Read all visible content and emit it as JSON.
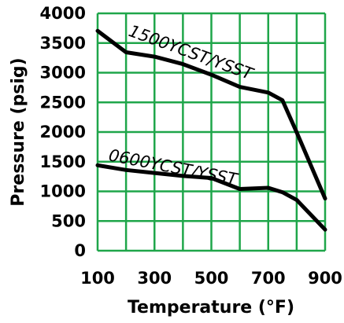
{
  "chart_data": {
    "type": "line",
    "title": "",
    "xlabel": "Temperature (°F)",
    "ylabel": "Pressure (psig)",
    "xlim": [
      100,
      900
    ],
    "ylim": [
      0,
      4000
    ],
    "x_ticks": [
      "100",
      "300",
      "500",
      "700",
      "900"
    ],
    "y_ticks": [
      "4000",
      "3500",
      "3000",
      "2500",
      "2000",
      "1500",
      "1000",
      "500",
      "0"
    ],
    "grid": true,
    "grid_color": "#1fa64a",
    "line_color": "#000000",
    "series": [
      {
        "name": "1500YCST/YSST",
        "x": [
          100,
          200,
          300,
          400,
          500,
          600,
          700,
          750,
          800,
          900
        ],
        "y": [
          3705,
          3345,
          3270,
          3145,
          2965,
          2760,
          2665,
          2535,
          1995,
          880
        ]
      },
      {
        "name": "0600YCST/YSST",
        "x": [
          100,
          200,
          300,
          400,
          500,
          600,
          700,
          750,
          800,
          900
        ],
        "y": [
          1440,
          1360,
          1310,
          1260,
          1225,
          1040,
          1060,
          985,
          855,
          355
        ]
      }
    ]
  }
}
